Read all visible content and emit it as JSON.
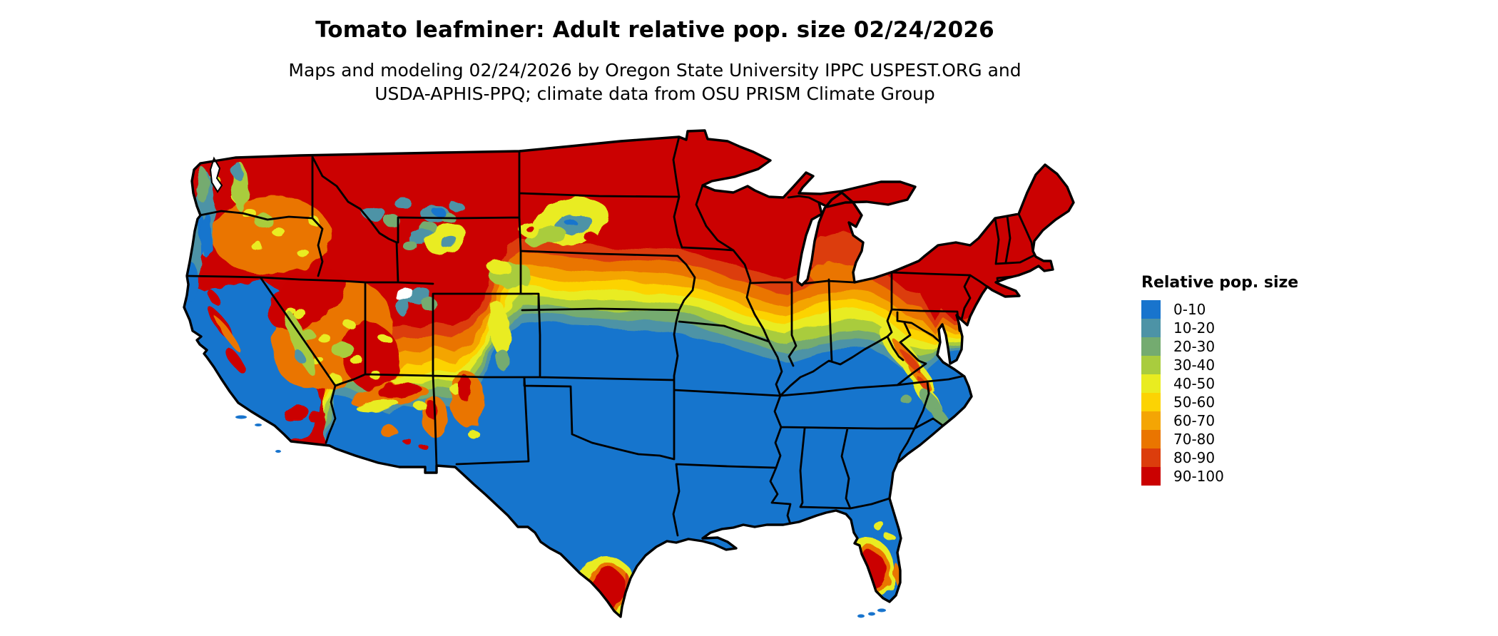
{
  "header": {
    "title": "Tomato leafminer: Adult relative pop. size 02/24/2026",
    "subtitle_line1": "Maps and modeling 02/24/2026 by Oregon State University IPPC USPEST.ORG and",
    "subtitle_line2": "USDA-APHIS-PPQ; climate data from OSU PRISM Climate Group"
  },
  "legend": {
    "title": "Relative pop. size",
    "items": [
      {
        "label": "0-10",
        "color": "#1874CD"
      },
      {
        "label": "10-20",
        "color": "#4D93A6"
      },
      {
        "label": "20-30",
        "color": "#74AB70"
      },
      {
        "label": "30-40",
        "color": "#A9CC3E"
      },
      {
        "label": "40-50",
        "color": "#E9EC20"
      },
      {
        "label": "50-60",
        "color": "#FCD303"
      },
      {
        "label": "60-70",
        "color": "#F4A504"
      },
      {
        "label": "70-80",
        "color": "#EA7500"
      },
      {
        "label": "80-90",
        "color": "#DC3D0C"
      },
      {
        "label": "90-100",
        "color": "#CB0101"
      }
    ]
  },
  "map": {
    "background_color": "#ffffff",
    "water_color": "#ffffff",
    "border_color": "#000000"
  }
}
